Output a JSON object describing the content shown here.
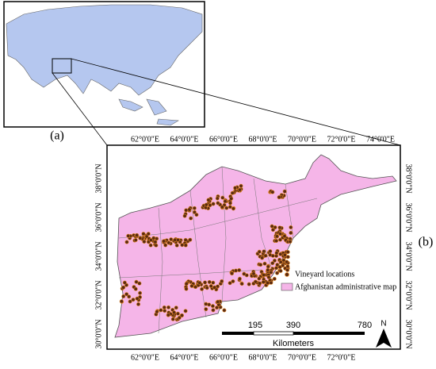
{
  "panel_a": {
    "label": "(a)"
  },
  "panel_b": {
    "label": "(b)",
    "top_longitudes": [
      "62°0'0\"E",
      "64°0'0\"E",
      "66°0'0\"E",
      "68°0'0\"E",
      "70°0'0\"E",
      "72°0'0\"E",
      "74°0'0\"E"
    ],
    "bottom_longitudes": [
      "62°0'0\"E",
      "64°0'0\"E",
      "66°0'0\"E",
      "68°0'0\"E",
      "70°0'0\"E",
      "72°0'0\"E"
    ],
    "left_latitudes": [
      "38°0'0\"N",
      "36°0'0\"N",
      "34°0'0\"N",
      "32°0'0\"N",
      "30°0'0\"N"
    ],
    "right_latitudes": [
      "38°0'0\"N",
      "36°0'0\"N",
      "34°0'0\"N",
      "32°0'0\"N",
      "30°0'0\"N"
    ],
    "legend": [
      "Vineyard locations",
      "Afghanistan administrative map"
    ],
    "scale_bar": {
      "ticks": [
        195,
        390,
        780
      ],
      "unit": "Kilometers"
    },
    "north": "N"
  }
}
